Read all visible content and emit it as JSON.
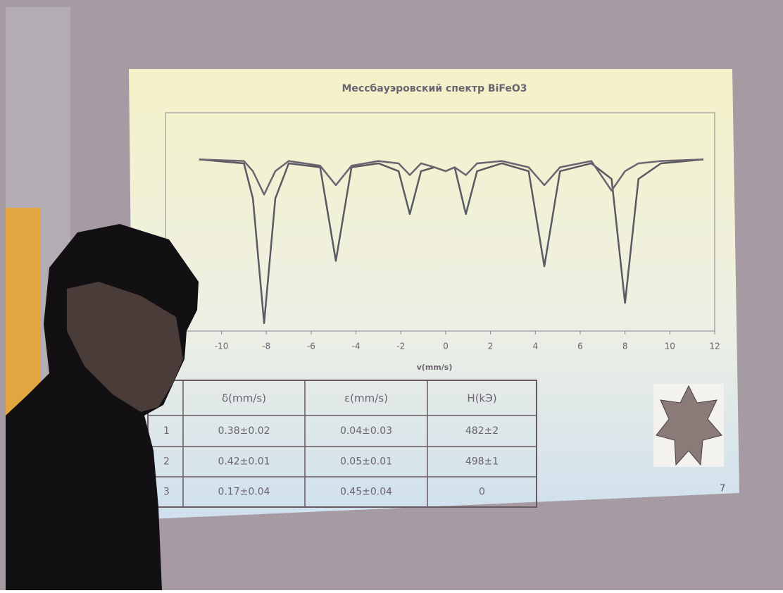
{
  "chart_data": {
    "type": "line",
    "title": "Мессбауэровский спектр BiFeO3",
    "x_label": "v(mm/s)",
    "x": [
      -11,
      -9,
      -8.6,
      -8.1,
      -7.6,
      -7,
      -5.6,
      -4.9,
      -4.2,
      -3,
      -2.1,
      -1.6,
      -1.1,
      -0.5,
      0,
      0.4,
      0.9,
      1.4,
      2.5,
      3.7,
      4.4,
      5.1,
      6.5,
      7.4,
      8,
      8.6,
      9.6,
      11.5
    ],
    "series": [
      {
        "color": "#5a5a62",
        "values": [
          1.0,
          0.995,
          0.95,
          0.79,
          0.95,
          0.995,
          0.99,
          0.87,
          0.99,
          0.995,
          0.985,
          0.93,
          0.985,
          0.99,
          0.985,
          0.99,
          0.93,
          0.985,
          0.995,
          0.985,
          0.863,
          0.985,
          0.995,
          0.975,
          0.816,
          0.975,
          0.995,
          1.0
        ]
      },
      {
        "color": "#6a6570",
        "values": [
          1.0,
          0.998,
          0.985,
          0.955,
          0.985,
          0.998,
          0.992,
          0.967,
          0.992,
          0.998,
          0.995,
          0.98,
          0.995,
          0.99,
          0.985,
          0.99,
          0.98,
          0.995,
          0.998,
          0.99,
          0.967,
          0.99,
          0.998,
          0.96,
          0.985,
          0.995,
          0.998,
          1.0
        ]
      }
    ],
    "xlim": [
      -12.5,
      12
    ],
    "xticks": [
      -10,
      -8,
      -6,
      -4,
      -2,
      0,
      2,
      4,
      6,
      8,
      10,
      12
    ],
    "ylim": [
      0.78,
      1.06
    ]
  },
  "table": {
    "columns": [
      "δ(mm/s)",
      "ε(mm/s)",
      "H(kЭ)"
    ],
    "rows": [
      [
        "1",
        "0.38±0.02",
        "0.04±0.03",
        "482±2"
      ],
      [
        "2",
        "0.42±0.01",
        "0.05±0.01",
        "498±1"
      ],
      [
        "3",
        "0.17±0.04",
        "0.45±0.04",
        "0"
      ]
    ]
  },
  "slide_number": "7"
}
